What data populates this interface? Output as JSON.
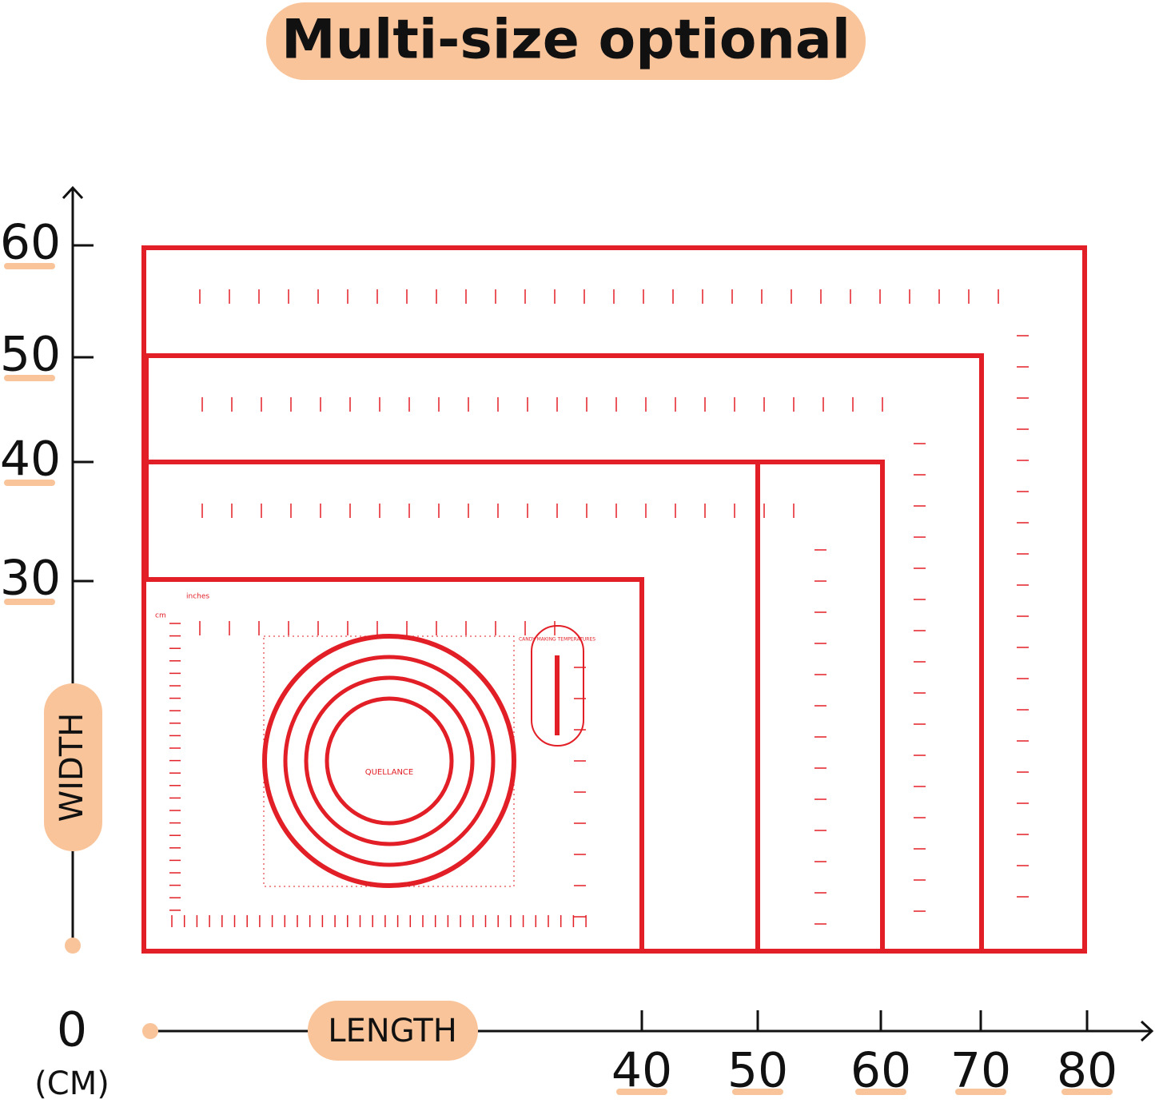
{
  "header": {
    "title": "Multi-size optional"
  },
  "width_axis": {
    "label": "WIDTH",
    "ticks": [
      60,
      50,
      40,
      30
    ]
  },
  "length_axis": {
    "label": "LENGTH",
    "ticks": [
      40,
      50,
      60,
      70,
      80
    ]
  },
  "origin": {
    "label": "0",
    "unit": "(CM)"
  },
  "mat": {
    "brand": "QUELLANCE",
    "candy": "CANDY MAKING TEMPERATURES",
    "inches": "inches",
    "cm": "cm"
  }
}
